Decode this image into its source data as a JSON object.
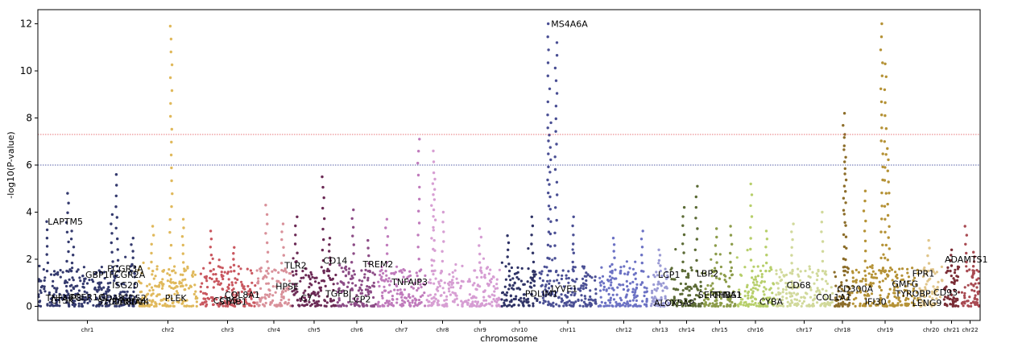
{
  "chart_data": {
    "type": "scatter",
    "title": "",
    "xlabel": "chromosome",
    "ylabel": "-log10(P-value)",
    "ylim": [
      -0.6,
      12.6
    ],
    "yticks": [
      0,
      2,
      4,
      6,
      8,
      10,
      12
    ],
    "grid": false,
    "thresholds": [
      {
        "value": 7.3,
        "color": "#e0474c",
        "style": "dotted"
      },
      {
        "value": 6.0,
        "color": "#1f2a8a",
        "style": "dotted"
      }
    ],
    "chromosomes": [
      {
        "name": "chr1",
        "color": "#343a6e",
        "peaks": [
          [
            0.1,
            3.6
          ],
          [
            0.3,
            4.8
          ],
          [
            0.35,
            3.2
          ],
          [
            0.8,
            5.6
          ],
          [
            0.75,
            3.9
          ],
          [
            0.95,
            2.9
          ]
        ]
      },
      {
        "name": "chr2",
        "color": "#e0b95c",
        "peaks": [
          [
            0.25,
            3.4
          ],
          [
            0.55,
            11.9
          ],
          [
            0.75,
            3.7
          ]
        ]
      },
      {
        "name": "chr3",
        "color": "#c9575f",
        "peaks": [
          [
            0.2,
            3.2
          ],
          [
            0.6,
            2.5
          ]
        ]
      },
      {
        "name": "chr4",
        "color": "#d9919a",
        "peaks": [
          [
            0.3,
            4.3
          ],
          [
            0.75,
            3.5
          ]
        ]
      },
      {
        "name": "chr5",
        "color": "#6b2a55",
        "peaks": [
          [
            0.1,
            3.8
          ],
          [
            0.7,
            5.5
          ],
          [
            0.85,
            2.9
          ]
        ]
      },
      {
        "name": "chr6",
        "color": "#8c4c86",
        "peaks": [
          [
            0.4,
            4.1
          ],
          [
            0.8,
            2.8
          ]
        ]
      },
      {
        "name": "chr7",
        "color": "#c07bbc",
        "peaks": [
          [
            0.2,
            3.7
          ],
          [
            0.85,
            7.1
          ]
        ]
      },
      {
        "name": "chr8",
        "color": "#d79fd3",
        "peaks": [
          [
            0.2,
            6.6
          ],
          [
            0.25,
            5.4
          ],
          [
            0.5,
            4.0
          ]
        ]
      },
      {
        "name": "chr9",
        "color": "#d69dd3",
        "peaks": [
          [
            0.5,
            3.3
          ]
        ]
      },
      {
        "name": "chr10",
        "color": "#2f3366",
        "peaks": [
          [
            0.2,
            3.0
          ],
          [
            0.85,
            3.8
          ]
        ]
      },
      {
        "name": "chr11",
        "color": "#4a4f94",
        "peaks": [
          [
            0.18,
            12.0
          ],
          [
            0.2,
            7.8
          ],
          [
            0.3,
            11.2
          ],
          [
            0.6,
            3.8
          ]
        ]
      },
      {
        "name": "chr12",
        "color": "#6c72c4",
        "peaks": [
          [
            0.3,
            2.9
          ],
          [
            0.85,
            3.2
          ]
        ]
      },
      {
        "name": "chr13",
        "color": "#9a9ad4",
        "peaks": [
          [
            0.5,
            2.4
          ]
        ]
      },
      {
        "name": "chr14",
        "color": "#5c6b36",
        "peaks": [
          [
            0.4,
            4.2
          ],
          [
            0.8,
            5.1
          ]
        ]
      },
      {
        "name": "chr15",
        "color": "#8c9c4a",
        "peaks": [
          [
            0.4,
            3.3
          ],
          [
            0.85,
            3.4
          ]
        ]
      },
      {
        "name": "chr16",
        "color": "#b7cf6b",
        "peaks": [
          [
            0.4,
            5.2
          ],
          [
            0.8,
            3.2
          ]
        ]
      },
      {
        "name": "chr17",
        "color": "#d1d99b",
        "peaks": [
          [
            0.3,
            3.5
          ],
          [
            0.8,
            4.0
          ]
        ]
      },
      {
        "name": "chr18",
        "color": "#8c6d2a",
        "peaks": [
          [
            0.6,
            8.2
          ],
          [
            0.65,
            7.3
          ]
        ]
      },
      {
        "name": "chr19",
        "color": "#b59236",
        "peaks": [
          [
            0.2,
            4.9
          ],
          [
            0.45,
            12.0
          ],
          [
            0.5,
            10.3
          ],
          [
            0.55,
            6.7
          ]
        ]
      },
      {
        "name": "chr20",
        "color": "#e0c58a",
        "peaks": [
          [
            0.4,
            2.8
          ]
        ]
      },
      {
        "name": "chr21",
        "color": "#7b2e37",
        "peaks": [
          [
            0.5,
            2.4
          ]
        ]
      },
      {
        "name": "chr22",
        "color": "#a84a52",
        "peaks": [
          [
            0.3,
            3.4
          ],
          [
            0.7,
            2.3
          ]
        ]
      }
    ],
    "annotations": [
      {
        "text": "LAPTM5",
        "chr": "chr1",
        "pos": 0.1,
        "y": 3.6
      },
      {
        "text": "GBP1",
        "chr": "chr1",
        "pos": 0.48,
        "y": 1.35
      },
      {
        "text": "FCGR3A",
        "chr": "chr1",
        "pos": 0.7,
        "y": 1.6
      },
      {
        "text": "FCGR2A",
        "chr": "chr1",
        "pos": 0.72,
        "y": 1.35
      },
      {
        "text": "ISG20",
        "chr": "chr1",
        "pos": 0.75,
        "y": 0.9
      },
      {
        "text": "TNFAIP8",
        "chr": "chr1",
        "pos": 0.08,
        "y": 0.35
      },
      {
        "text": "CTSK",
        "chr": "chr1",
        "pos": 0.13,
        "y": 0.25
      },
      {
        "text": "FCER1G",
        "chr": "chr1",
        "pos": 0.32,
        "y": 0.4
      },
      {
        "text": "CD48",
        "chr": "chr1",
        "pos": 0.62,
        "y": 0.35
      },
      {
        "text": "S100A8",
        "chr": "chr1",
        "pos": 0.6,
        "y": 0.2
      },
      {
        "text": "S100A4",
        "chr": "chr1",
        "pos": 0.75,
        "y": 0.2
      },
      {
        "text": "CD52",
        "chr": "chr1",
        "pos": 0.85,
        "y": 0.35
      },
      {
        "text": "CD14",
        "chr": "chr1",
        "pos": 0.88,
        "y": 0.2
      },
      {
        "text": "PLEK",
        "chr": "chr2",
        "pos": 0.45,
        "y": 0.35
      },
      {
        "text": "CCR5",
        "chr": "chr3",
        "pos": 0.25,
        "y": 0.25
      },
      {
        "text": "COL8A1",
        "chr": "chr3",
        "pos": 0.45,
        "y": 0.5
      },
      {
        "text": "STAB1",
        "chr": "chr3",
        "pos": 0.35,
        "y": 0.2
      },
      {
        "text": "HPSE",
        "chr": "chr4",
        "pos": 0.55,
        "y": 0.85
      },
      {
        "text": "TLR2",
        "chr": "chr4",
        "pos": 0.8,
        "y": 1.75
      },
      {
        "text": "C7",
        "chr": "chr5",
        "pos": 0.2,
        "y": 0.35
      },
      {
        "text": "CD14",
        "chr": "chr5",
        "pos": 0.7,
        "y": 1.95
      },
      {
        "text": "TGFBI",
        "chr": "chr5",
        "pos": 0.75,
        "y": 0.55
      },
      {
        "text": "LCP2",
        "chr": "chr6",
        "pos": 0.3,
        "y": 0.3
      },
      {
        "text": "TREM2",
        "chr": "chr6",
        "pos": 0.65,
        "y": 1.8
      },
      {
        "text": "TNFAIP3",
        "chr": "chr7",
        "pos": 0.3,
        "y": 1.05
      },
      {
        "text": "PDLIM1",
        "chr": "chr10",
        "pos": 0.65,
        "y": 0.55
      },
      {
        "text": "LYVE1",
        "chr": "chr11",
        "pos": 0.22,
        "y": 0.75
      },
      {
        "text": "MS4A6A",
        "chr": "chr11",
        "pos": 0.22,
        "y": 12.0
      },
      {
        "text": "LCP1",
        "chr": "chr13",
        "pos": 0.4,
        "y": 1.35
      },
      {
        "text": "ALOX5AP",
        "chr": "chr13",
        "pos": 0.2,
        "y": 0.15
      },
      {
        "text": "LBP2",
        "chr": "chr14",
        "pos": 0.8,
        "y": 1.4
      },
      {
        "text": "SERPINA1",
        "chr": "chr14",
        "pos": 0.85,
        "y": 0.5
      },
      {
        "text": "THBS1",
        "chr": "chr15",
        "pos": 0.3,
        "y": 0.5
      },
      {
        "text": "CYBA",
        "chr": "chr16",
        "pos": 0.6,
        "y": 0.2
      },
      {
        "text": "CD68",
        "chr": "chr17",
        "pos": 0.2,
        "y": 0.9
      },
      {
        "text": "COL1A1",
        "chr": "chr17",
        "pos": 0.7,
        "y": 0.4
      },
      {
        "text": "CD300A",
        "chr": "chr18",
        "pos": 0.2,
        "y": 0.75
      },
      {
        "text": "IFI30",
        "chr": "chr19",
        "pos": 0.2,
        "y": 0.2
      },
      {
        "text": "TYROBP",
        "chr": "chr19",
        "pos": 0.65,
        "y": 0.55
      },
      {
        "text": "GMFG",
        "chr": "chr19",
        "pos": 0.6,
        "y": 0.95
      },
      {
        "text": "FPR1",
        "chr": "chr19",
        "pos": 0.9,
        "y": 1.4
      },
      {
        "text": "LENG9",
        "chr": "chr19",
        "pos": 0.9,
        "y": 0.15
      },
      {
        "text": "CD93",
        "chr": "chr20",
        "pos": 0.6,
        "y": 0.6
      },
      {
        "text": "ADAMTS1",
        "chr": "chr21",
        "pos": 0.95,
        "y": 2.0
      }
    ]
  }
}
